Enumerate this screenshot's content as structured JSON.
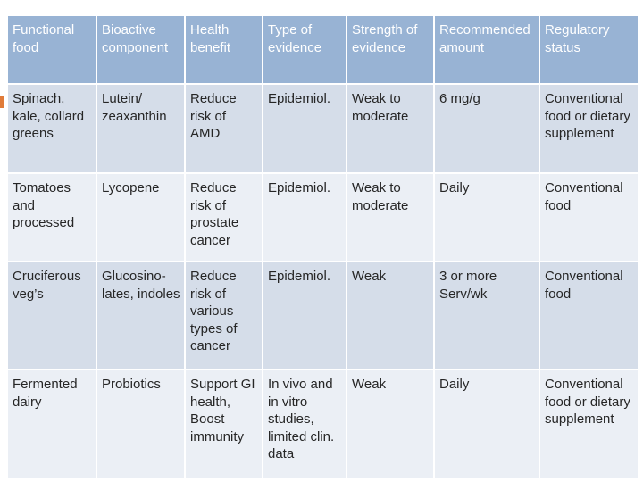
{
  "table": {
    "headers": [
      "Functional food",
      "Bioactive component",
      "Health benefit",
      "Type of evidence",
      "Strength of evidence",
      "Recommended amount",
      "Regulatory status"
    ],
    "rows": [
      [
        "Spinach, kale, collard greens",
        "Lutein/ zeaxanthin",
        "Reduce risk of AMD",
        "Epidemiol.",
        "Weak to moderate",
        "6 mg/g",
        "Conventional food or dietary supplement"
      ],
      [
        "Tomatoes and processed",
        "Lycopene",
        "Reduce risk of prostate cancer",
        "Epidemiol.",
        "Weak to moderate",
        "Daily",
        "Conventional food"
      ],
      [
        "Cruciferous veg’s",
        "Glucosino-lates, indoles",
        "Reduce risk of various types of cancer",
        "Epidemiol.",
        "Weak",
        "3 or more Serv/wk",
        "Conventional food"
      ],
      [
        "Fermented dairy",
        "Probiotics",
        "Support GI health, Boost immunity",
        "In vivo and in vitro studies, limited clin. data",
        "Weak",
        "Daily",
        "Conventional food or dietary supplement"
      ]
    ]
  },
  "colors": {
    "header_bg": "#98b3d4",
    "row_dark": "#d5dde9",
    "row_light": "#ebeff5",
    "accent": "#e07b39"
  }
}
